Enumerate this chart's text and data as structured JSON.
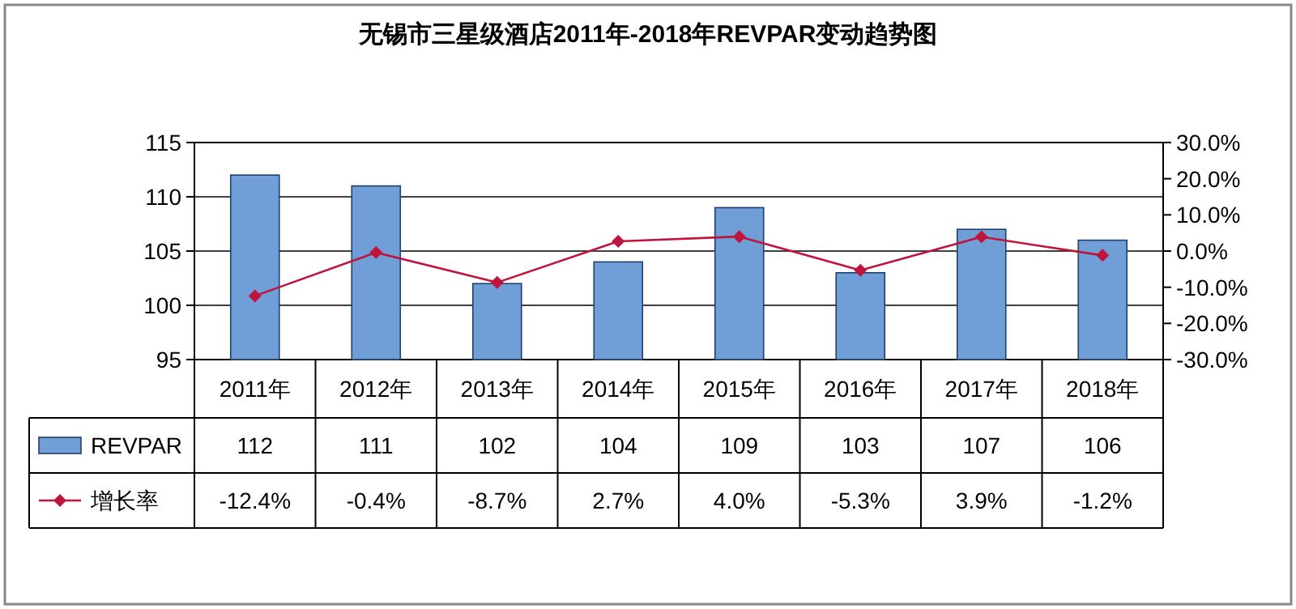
{
  "chart_data": {
    "type": "bar",
    "title": "无锡市三星级酒店2011年-2018年REVPAR变动趋势图",
    "categories": [
      "2011年",
      "2012年",
      "2013年",
      "2014年",
      "2015年",
      "2016年",
      "2017年",
      "2018年"
    ],
    "series": [
      {
        "name": "REVPAR",
        "color": "#6f9fd6",
        "values": [
          112,
          111,
          102,
          104,
          109,
          103,
          107,
          106
        ],
        "value_labels": [
          "112",
          "111",
          "102",
          "104",
          "109",
          "103",
          "107",
          "106"
        ]
      },
      {
        "name": "增长率",
        "type": "line",
        "axis": "y2",
        "marker": "diamond",
        "color": "#c0143c",
        "values": [
          -12.4,
          -0.4,
          -8.7,
          2.7,
          4.0,
          -5.3,
          3.9,
          -1.2
        ],
        "value_labels": [
          "-12.4%",
          "-0.4%",
          "-8.7%",
          "2.7%",
          "4.0%",
          "-5.3%",
          "3.9%",
          "-1.2%"
        ]
      }
    ],
    "ylim": [
      95,
      115
    ],
    "yticks": [
      95,
      100,
      105,
      110,
      115
    ],
    "y2lim": [
      -30,
      30
    ],
    "y2ticks": [
      {
        "value": -30,
        "label": "-30.0%"
      },
      {
        "value": -20,
        "label": "-20.0%"
      },
      {
        "value": -10,
        "label": "-10.0%"
      },
      {
        "value": 0,
        "label": "0.0%"
      },
      {
        "value": 10,
        "label": "10.0%"
      },
      {
        "value": 20,
        "label": "20.0%"
      },
      {
        "value": 30,
        "label": "30.0%"
      }
    ],
    "grid": "y",
    "legend": "bottom"
  }
}
